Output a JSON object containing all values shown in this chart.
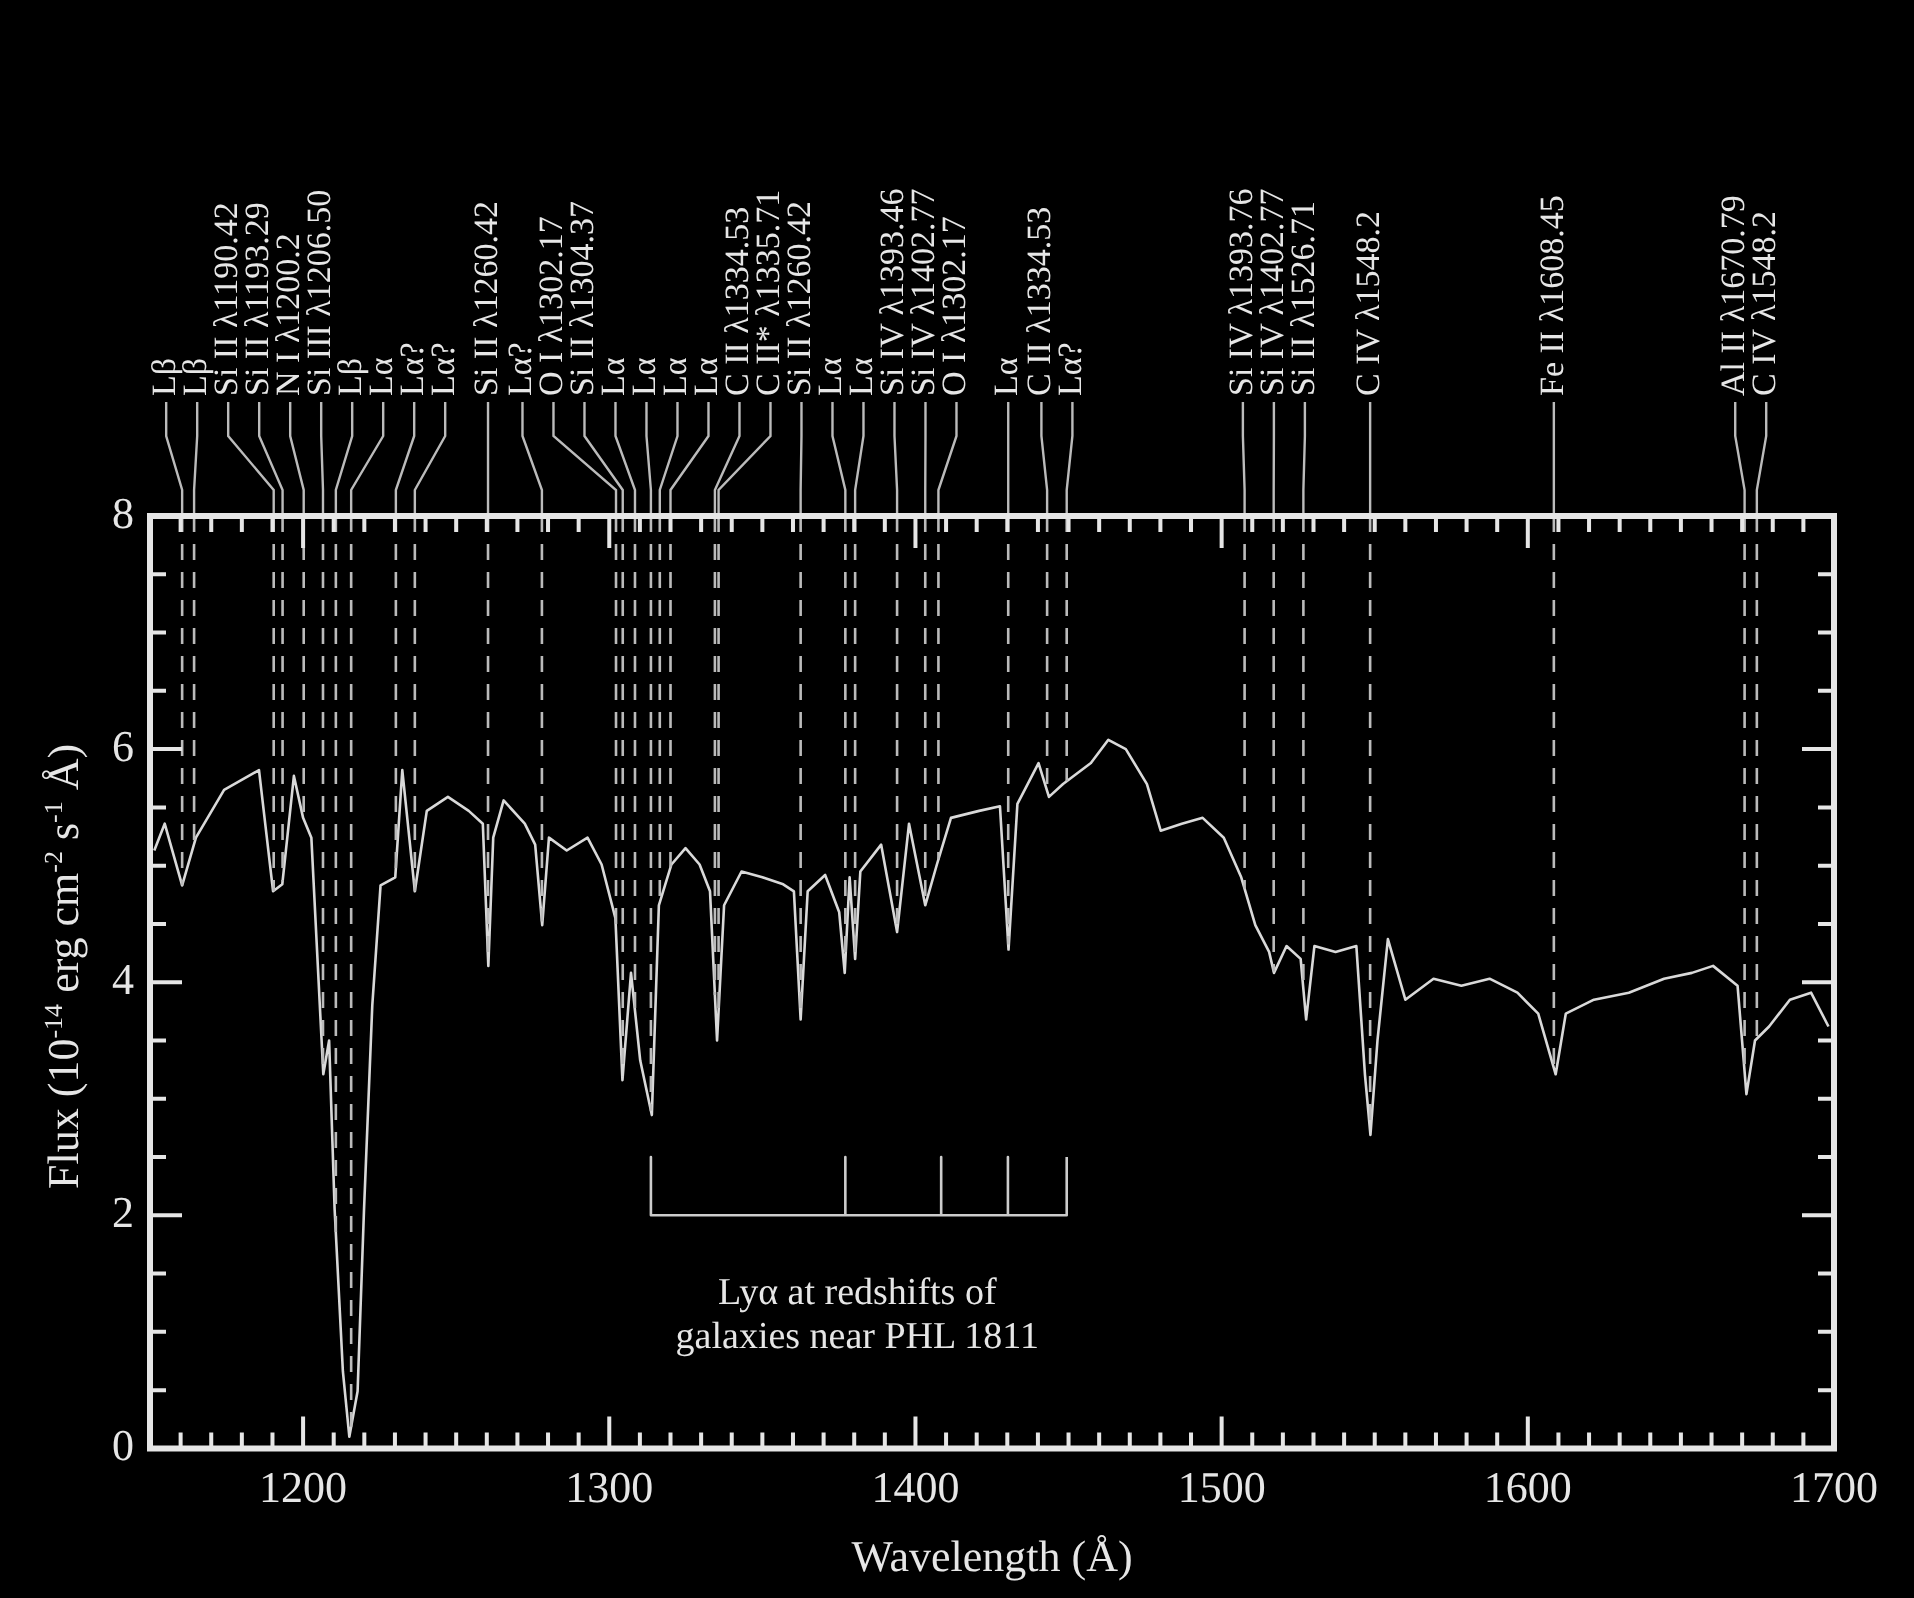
{
  "chart_data": {
    "type": "line",
    "xlabel": "Wavelength (Å)",
    "ylabel": "Flux (10$^{-14}$ erg cm$^{-2}$ s$^{-1}$ Å)",
    "xlim": [
      1150,
      1700
    ],
    "xticks": [
      {
        "value": 1150,
        "label": null
      },
      {
        "value": 1160,
        "label": null
      },
      {
        "value": 1170,
        "label": null
      },
      {
        "value": 1180,
        "label": null
      },
      {
        "value": 1190,
        "label": null
      },
      1200,
      {
        "value": 1210,
        "label": null
      },
      {
        "value": 1220,
        "label": null
      },
      {
        "value": 1230,
        "label": null
      },
      {
        "value": 1240,
        "label": null
      },
      {
        "value": 1250,
        "label": null
      },
      {
        "value": 1260,
        "label": null
      },
      {
        "value": 1270,
        "label": null
      },
      {
        "value": 1280,
        "label": null
      },
      {
        "value": 1290,
        "label": null
      },
      1300,
      {
        "value": 1310,
        "label": null
      },
      {
        "value": 1320,
        "label": null
      },
      {
        "value": 1330,
        "label": null
      },
      {
        "value": 1340,
        "label": null
      },
      {
        "value": 1350,
        "label": null
      },
      {
        "value": 1360,
        "label": null
      },
      {
        "value": 1370,
        "label": null
      },
      {
        "value": 1380,
        "label": null
      },
      {
        "value": 1390,
        "label": null
      },
      1400,
      {
        "value": 1410,
        "label": null
      },
      {
        "value": 1420,
        "label": null
      },
      {
        "value": 1430,
        "label": null
      },
      {
        "value": 1440,
        "label": null
      },
      {
        "value": 1450,
        "label": null
      },
      {
        "value": 1460,
        "label": null
      },
      {
        "value": 1470,
        "label": null
      },
      {
        "value": 1480,
        "label": null
      },
      {
        "value": 1490,
        "label": null
      },
      1500,
      {
        "value": 1510,
        "label": null
      },
      {
        "value": 1520,
        "label": null
      },
      {
        "value": 1530,
        "label": null
      },
      {
        "value": 1540,
        "label": null
      },
      {
        "value": 1550,
        "label": null
      },
      {
        "value": 1560,
        "label": null
      },
      {
        "value": 1570,
        "label": null
      },
      {
        "value": 1580,
        "label": null
      },
      {
        "value": 1590,
        "label": null
      },
      1600,
      {
        "value": 1610,
        "label": null
      },
      {
        "value": 1620,
        "label": null
      },
      {
        "value": 1630,
        "label": null
      },
      {
        "value": 1640,
        "label": null
      },
      {
        "value": 1650,
        "label": null
      },
      {
        "value": 1660,
        "label": null
      },
      {
        "value": 1670,
        "label": null
      },
      {
        "value": 1680,
        "label": null
      },
      {
        "value": 1690,
        "label": null
      },
      1700
    ],
    "ylim": [
      0,
      8
    ],
    "yticks": [
      0,
      {
        "value": 0.5,
        "label": null
      },
      {
        "value": 1,
        "label": null
      },
      {
        "value": 1.5,
        "label": null
      },
      2,
      {
        "value": 2.5,
        "label": null
      },
      {
        "value": 3,
        "label": null
      },
      {
        "value": 3.5,
        "label": null
      },
      4,
      {
        "value": 4.5,
        "label": null
      },
      {
        "value": 5,
        "label": null
      },
      {
        "value": 5.5,
        "label": null
      },
      6,
      {
        "value": 6.5,
        "label": null
      },
      {
        "value": 7,
        "label": null
      },
      {
        "value": 7.5,
        "label": null
      },
      8
    ],
    "series": [
      {
        "color": "#d9d9d9",
        "x": [
          1151.4,
          1154.8,
          1160.5,
          1165,
          1174.2,
          1185.6,
          1190.2,
          1193.2,
          1197,
          1200,
          1202.7,
          1206.6,
          1208.5,
          1210.3,
          1213,
          1215.1,
          1217.8,
          1219.9,
          1222.6,
          1225.3,
          1230.1,
          1232.4,
          1236.5,
          1240.4,
          1247.3,
          1254.1,
          1258.7,
          1260.5,
          1262.1,
          1265.5,
          1272.4,
          1275.8,
          1278.1,
          1280.3,
          1286.1,
          1292.9,
          1297.5,
          1302,
          1304.3,
          1307.1,
          1310.1,
          1313.9,
          1316.2,
          1320.3,
          1324.9,
          1329.5,
          1332.9,
          1335.2,
          1337.5,
          1343.2,
          1350,
          1356.8,
          1360.3,
          1362.5,
          1364.8,
          1370.5,
          1375.1,
          1376.9,
          1378.5,
          1380.3,
          1382,
          1388.8,
          1394,
          1397.9,
          1403.2,
          1407,
          1411.6,
          1420.8,
          1427.6,
          1430.4,
          1433.3,
          1440.2,
          1443.6,
          1448.2,
          1457.3,
          1463,
          1468.7,
          1475.6,
          1480.1,
          1487,
          1493.8,
          1500.7,
          1506.4,
          1511,
          1515.5,
          1517.1,
          1521.2,
          1525.8,
          1527.6,
          1530.3,
          1537.2,
          1544,
          1546.8,
          1548.6,
          1550.9,
          1554.3,
          1560,
          1569.2,
          1578.3,
          1587.5,
          1596.6,
          1603.4,
          1609.1,
          1612.4,
          1621.6,
          1633,
          1644.5,
          1653.6,
          1660.5,
          1668.5,
          1671.4,
          1674.2,
          1678.8,
          1685.6,
          1692.5,
          1698.2
        ],
        "values": [
          5.13,
          5.36,
          4.83,
          5.24,
          5.65,
          5.82,
          4.78,
          4.84,
          5.77,
          5.41,
          5.24,
          3.21,
          3.5,
          2.05,
          0.66,
          0.1,
          0.49,
          2.05,
          3.8,
          4.83,
          4.9,
          5.82,
          4.78,
          5.47,
          5.59,
          5.47,
          5.36,
          4.14,
          5.24,
          5.56,
          5.36,
          5.18,
          4.49,
          5.24,
          5.13,
          5.24,
          5.01,
          4.55,
          3.16,
          4.08,
          3.33,
          2.86,
          4.66,
          5.01,
          5.15,
          5.01,
          4.78,
          3.5,
          4.66,
          4.95,
          4.9,
          4.84,
          4.78,
          3.68,
          4.78,
          4.92,
          4.6,
          4.08,
          4.9,
          4.2,
          4.95,
          5.18,
          4.43,
          5.36,
          4.66,
          5.01,
          5.41,
          5.47,
          5.51,
          4.28,
          5.53,
          5.88,
          5.59,
          5.7,
          5.88,
          6.08,
          6.0,
          5.7,
          5.3,
          5.36,
          5.41,
          5.24,
          4.9,
          4.49,
          4.26,
          4.08,
          4.31,
          4.2,
          3.68,
          4.31,
          4.26,
          4.31,
          3.21,
          2.69,
          3.5,
          4.37,
          3.85,
          4.03,
          3.97,
          4.03,
          3.91,
          3.73,
          3.21,
          3.73,
          3.85,
          3.91,
          4.03,
          4.08,
          4.14,
          3.97,
          3.04,
          3.5,
          3.62,
          3.85,
          3.91,
          3.62
        ]
      },
      {
        "color": "#cccccc",
        "x": [
          1313.6,
          1313.6,
          1377.1,
          1377.1,
          1377.1,
          1408.4,
          1408.4,
          1408.4,
          1430.2,
          1430.2,
          1430.2,
          1449.4,
          1449.4
        ],
        "values": [
          2.5,
          2,
          2,
          2.5,
          2,
          2,
          2.5,
          2,
          2,
          2.5,
          2,
          2,
          2.5
        ]
      }
    ],
    "ref_lines": [
      {
        "axis": "x",
        "value": 1160.5,
        "label": "Lβ",
        "line_style": "dashed"
      },
      {
        "axis": "x",
        "value": 1164.4,
        "label": "Lβ",
        "line_style": "dashed"
      },
      {
        "axis": "x",
        "value": 1190.4,
        "label": "Si II λ1190.42",
        "line_style": "dashed"
      },
      {
        "axis": "x",
        "value": 1193.3,
        "label": "Si II λ1193.29",
        "line_style": "dashed"
      },
      {
        "axis": "x",
        "value": 1200.2,
        "label": "N I λ1200.2",
        "line_style": "dashed"
      },
      {
        "axis": "x",
        "value": 1206.5,
        "label": "Si III λ1206.50",
        "line_style": "dashed"
      },
      {
        "axis": "x",
        "value": 1210.7,
        "label": "Lβ",
        "line_style": "dashed"
      },
      {
        "axis": "x",
        "value": 1215.7,
        "label": "Lα",
        "line_style": "dashed"
      },
      {
        "axis": "x",
        "value": 1230.3,
        "label": "Lα?",
        "line_style": "dashed"
      },
      {
        "axis": "x",
        "value": 1236.5,
        "label": "Lα?",
        "line_style": "dashed"
      },
      {
        "axis": "x",
        "value": 1260.4,
        "label": "Si II λ1260.42",
        "line_style": "dashed"
      },
      {
        "axis": "x",
        "value": 1278,
        "label": "Lα?",
        "line_style": "dashed"
      },
      {
        "axis": "x",
        "value": 1302.2,
        "label": "O I λ1302.17",
        "line_style": "dashed"
      },
      {
        "axis": "x",
        "value": 1304.4,
        "label": "Si II λ1304.37",
        "line_style": "dashed"
      },
      {
        "axis": "x",
        "value": 1308.4,
        "label": "Lα",
        "line_style": "dashed"
      },
      {
        "axis": "x",
        "value": 1313.6,
        "label": "Lα",
        "line_style": "dashed"
      },
      {
        "axis": "x",
        "value": 1316.5,
        "label": "Lα",
        "line_style": "dashed"
      },
      {
        "axis": "x",
        "value": 1320,
        "label": "Lα",
        "line_style": "dashed"
      },
      {
        "axis": "x",
        "value": 1334.5,
        "label": "C II λ1334.53",
        "line_style": "dashed"
      },
      {
        "axis": "x",
        "value": 1335.7,
        "label": "C II* λ1335.71",
        "line_style": "dashed"
      },
      {
        "axis": "x",
        "value": 1362.5,
        "label": "Si II λ1260.42",
        "line_style": "dashed"
      },
      {
        "axis": "x",
        "value": 1377.1,
        "label": "Lα",
        "line_style": "dashed"
      },
      {
        "axis": "x",
        "value": 1380.3,
        "label": "Lα",
        "line_style": "dashed"
      },
      {
        "axis": "x",
        "value": 1394,
        "label": "Si IV λ1393.46",
        "line_style": "dashed"
      },
      {
        "axis": "x",
        "value": 1403.2,
        "label": "Si IV λ1402.77",
        "line_style": "dashed"
      },
      {
        "axis": "x",
        "value": 1407.5,
        "label": "O I λ1302.17",
        "line_style": "dashed"
      },
      {
        "axis": "x",
        "value": 1430.3,
        "label": "Lα",
        "line_style": "dashed"
      },
      {
        "axis": "x",
        "value": 1443,
        "label": "C II λ1334.53",
        "line_style": "dashed"
      },
      {
        "axis": "x",
        "value": 1449.4,
        "label": "Lα?",
        "line_style": "dashed"
      },
      {
        "axis": "x",
        "value": 1507.5,
        "label": "Si IV λ1393.76",
        "line_style": "dashed"
      },
      {
        "axis": "x",
        "value": 1517,
        "label": "Si IV λ1402.77",
        "line_style": "dashed"
      },
      {
        "axis": "x",
        "value": 1526.7,
        "label": "Si II λ1526.71",
        "line_style": "dashed"
      },
      {
        "axis": "x",
        "value": 1548.5,
        "label": "C IV λ1548.2",
        "line_style": "dashed"
      },
      {
        "axis": "x",
        "value": 1608.5,
        "label": "Fe II λ1608.45",
        "line_style": "dashed"
      },
      {
        "axis": "x",
        "value": 1670.8,
        "label": "Al II λ1670.79",
        "line_style": "dashed"
      },
      {
        "axis": "x",
        "value": 1674.8,
        "label": "C IV λ1548.2",
        "line_style": "dashed"
      }
    ],
    "annotations": [
      {
        "text": "Lyα at redshifts of\ngalaxies near PHL 1811",
        "x": 1381,
        "y": 2
      }
    ]
  }
}
